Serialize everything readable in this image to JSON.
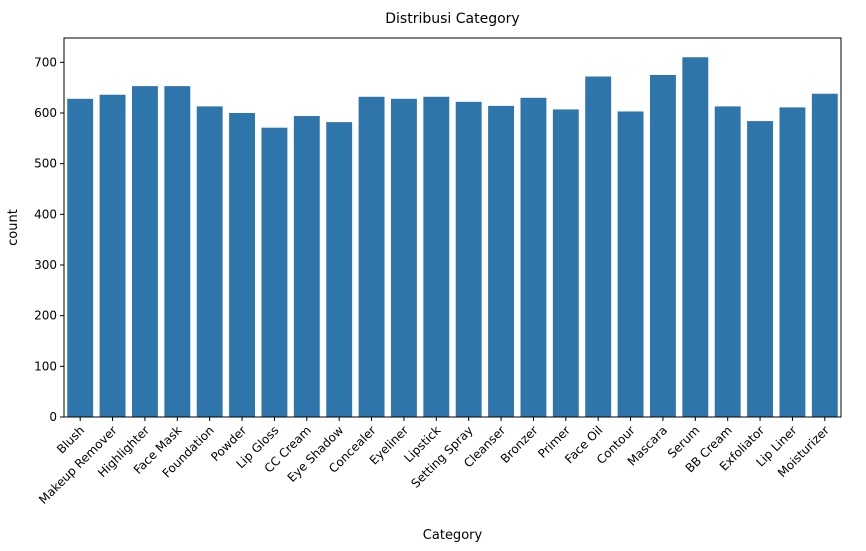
{
  "chart_data": {
    "type": "bar",
    "title": "Distribusi Category",
    "xlabel": "Category",
    "ylabel": "count",
    "categories": [
      "Blush",
      "Makeup Remover",
      "Highlighter",
      "Face Mask",
      "Foundation",
      "Powder",
      "Lip Gloss",
      "CC Cream",
      "Eye Shadow",
      "Concealer",
      "Eyeliner",
      "Lipstick",
      "Setting Spray",
      "Cleanser",
      "Bronzer",
      "Primer",
      "Face Oil",
      "Contour",
      "Mascara",
      "Serum",
      "BB Cream",
      "Exfoliator",
      "Lip Liner",
      "Moisturizer"
    ],
    "values": [
      628,
      636,
      653,
      653,
      613,
      600,
      571,
      594,
      582,
      632,
      628,
      632,
      622,
      614,
      630,
      607,
      672,
      603,
      675,
      710,
      613,
      584,
      611,
      638
    ],
    "ylim": [
      0,
      748
    ],
    "yticks": [
      0,
      100,
      200,
      300,
      400,
      500,
      600,
      700
    ],
    "color": "#2e75ab",
    "grid": false,
    "legend": "none"
  }
}
